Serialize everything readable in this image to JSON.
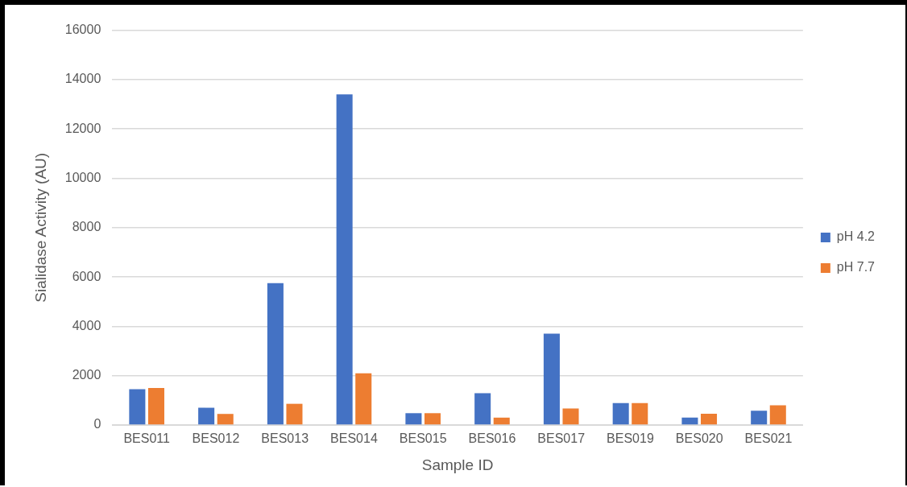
{
  "chart_data": {
    "type": "bar",
    "xlabel": "Sample ID",
    "ylabel": "Sialidase Activity (AU)",
    "categories": [
      "BES011",
      "BES012",
      "BES013",
      "BES014",
      "BES015",
      "BES016",
      "BES017",
      "BES019",
      "BES020",
      "BES021"
    ],
    "series": [
      {
        "name": "pH 4.2",
        "color": "#4472c4",
        "values": [
          1450,
          700,
          5750,
          13400,
          480,
          1290,
          3700,
          890,
          300,
          580
        ]
      },
      {
        "name": "pH 7.7",
        "color": "#ed7d31",
        "values": [
          1500,
          450,
          860,
          2100,
          480,
          300,
          670,
          890,
          460,
          800
        ]
      }
    ],
    "ylim": [
      0,
      16000
    ],
    "yticks": [
      0,
      2000,
      4000,
      6000,
      8000,
      10000,
      12000,
      14000,
      16000
    ],
    "grid": "y",
    "legend": "right"
  }
}
